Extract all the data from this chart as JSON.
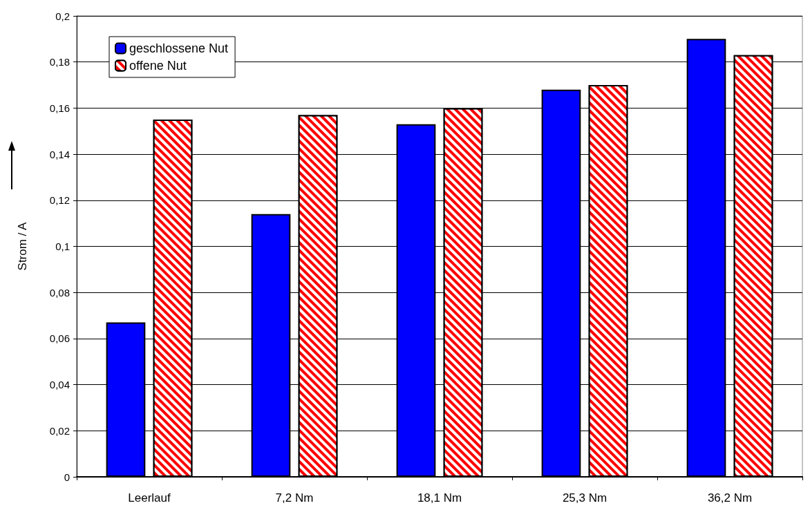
{
  "chart_data": {
    "type": "bar",
    "ylabel": "Strom / A",
    "categories": [
      "Leerlauf",
      "7,2 Nm",
      "18,1 Nm",
      "25,3 Nm",
      "36,2 Nm"
    ],
    "series": [
      {
        "name": "geschlossene Nut",
        "color": "#0000ff",
        "values": [
          0.067,
          0.114,
          0.153,
          0.168,
          0.19
        ]
      },
      {
        "name": "offene Nut",
        "color": "#ff0000",
        "values": [
          0.155,
          0.157,
          0.16,
          0.17,
          0.183
        ]
      }
    ],
    "ylim": [
      0,
      0.2
    ],
    "yticks": [
      {
        "value": 0,
        "label": "0"
      },
      {
        "value": 0.02,
        "label": "0,02"
      },
      {
        "value": 0.04,
        "label": "0,04"
      },
      {
        "value": 0.06,
        "label": "0,06"
      },
      {
        "value": 0.08,
        "label": "0,08"
      },
      {
        "value": 0.1,
        "label": "0,1"
      },
      {
        "value": 0.12,
        "label": "0,12"
      },
      {
        "value": 0.14,
        "label": "0,14"
      },
      {
        "value": 0.16,
        "label": "0,16"
      },
      {
        "value": 0.18,
        "label": "0,18"
      },
      {
        "value": 0.2,
        "label": "0,2"
      }
    ],
    "grid": "y",
    "legend": "top left"
  }
}
